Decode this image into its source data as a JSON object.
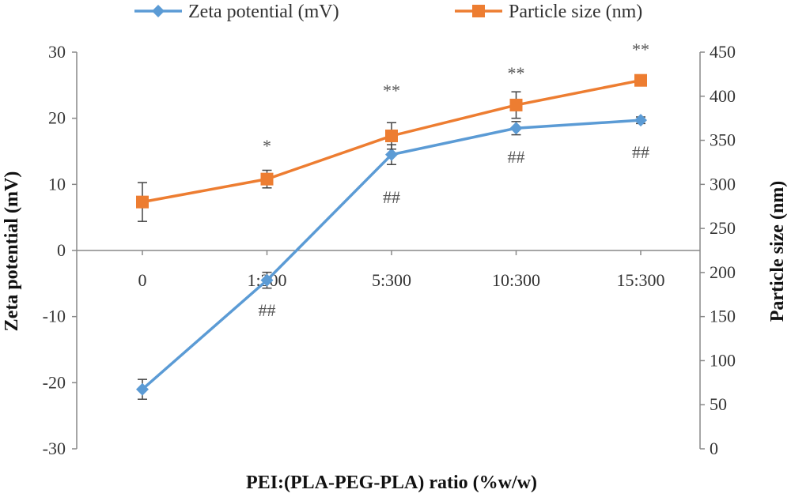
{
  "chart_data": {
    "type": "line",
    "categories": [
      "0",
      "1:300",
      "5:300",
      "10:300",
      "15:300"
    ],
    "xlabel": "PEI:(PLA-PEG-PLA) ratio (%w/w)",
    "ylabel_left": "Zeta potential (mV)",
    "ylabel_right": "Particle size (nm)",
    "ylim_left": [
      -30,
      30
    ],
    "yticks_left": [
      30,
      20,
      10,
      0,
      -10,
      -20,
      -30
    ],
    "ylim_right": [
      0,
      450
    ],
    "yticks_right": [
      450,
      400,
      350,
      300,
      250,
      200,
      150,
      100,
      50,
      0
    ],
    "grid": false,
    "legend_position": "top",
    "series": [
      {
        "name": "Zeta potential (mV)",
        "axis": "left",
        "color": "#5b9bd5",
        "marker": "diamond",
        "values": [
          -21,
          -4.5,
          14.5,
          18.5,
          19.7
        ],
        "errors": [
          1.5,
          1.2,
          1.5,
          1.0,
          0.5
        ]
      },
      {
        "name": "Particle size (nm)",
        "axis": "right",
        "color": "#ed7d31",
        "marker": "square",
        "values": [
          280,
          306,
          355,
          390,
          418
        ],
        "errors": [
          22,
          10,
          15,
          15,
          6
        ]
      }
    ],
    "annotations": [
      {
        "category": "1:300",
        "text": "*",
        "position": "above"
      },
      {
        "category": "5:300",
        "text": "**",
        "position": "above"
      },
      {
        "category": "10:300",
        "text": "**",
        "position": "above"
      },
      {
        "category": "15:300",
        "text": "**",
        "position": "above"
      },
      {
        "category": "1:300",
        "text": "##",
        "position": "below"
      },
      {
        "category": "5:300",
        "text": "##",
        "position": "below"
      },
      {
        "category": "10:300",
        "text": "##",
        "position": "below"
      },
      {
        "category": "15:300",
        "text": "##",
        "position": "below"
      }
    ]
  }
}
